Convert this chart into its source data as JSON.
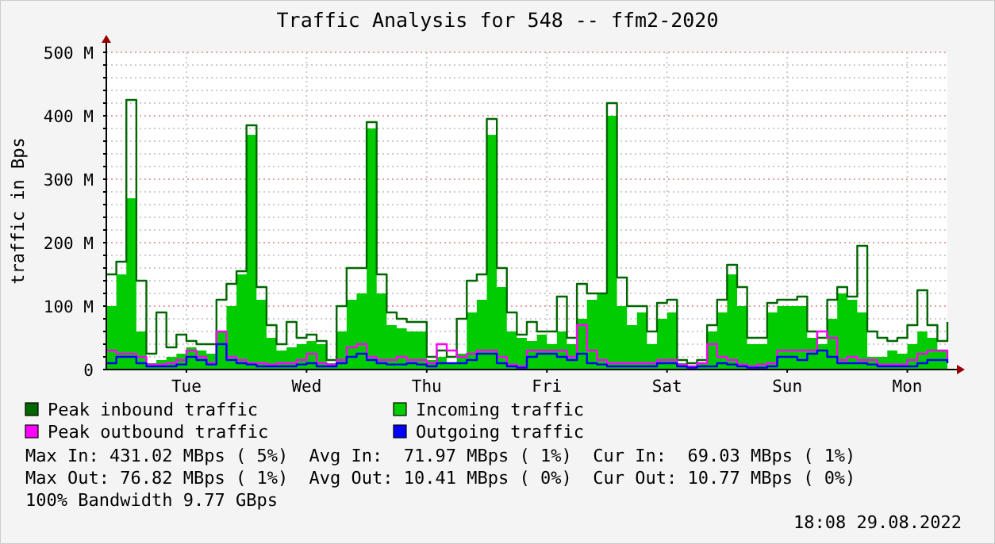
{
  "chart_data": {
    "type": "area",
    "title": "Traffic Analysis for 548 -- ffm2-2020",
    "ylabel": "traffic in Bps",
    "categories": [
      null,
      null,
      null,
      null,
      null,
      null,
      null,
      null,
      "Tue",
      null,
      null,
      null,
      null,
      null,
      null,
      null,
      null,
      null,
      null,
      null,
      "Wed",
      null,
      null,
      null,
      null,
      null,
      null,
      null,
      null,
      null,
      null,
      null,
      "Thu",
      null,
      null,
      null,
      null,
      null,
      null,
      null,
      null,
      null,
      null,
      null,
      "Fri",
      null,
      null,
      null,
      null,
      null,
      null,
      null,
      null,
      null,
      null,
      null,
      "Sat",
      null,
      null,
      null,
      null,
      null,
      null,
      null,
      null,
      null,
      null,
      null,
      "Sun",
      null,
      null,
      null,
      null,
      null,
      null,
      null,
      null,
      null,
      null,
      null,
      "Mon",
      null,
      null,
      null,
      null
    ],
    "series": [
      {
        "name": "Peak inbound traffic",
        "type": "step",
        "color": "#006600",
        "values": [
          150,
          170,
          425,
          140,
          25,
          90,
          35,
          55,
          45,
          40,
          40,
          110,
          135,
          155,
          385,
          130,
          70,
          40,
          75,
          50,
          55,
          45,
          15,
          100,
          160,
          160,
          390,
          150,
          90,
          80,
          75,
          75,
          20,
          30,
          20,
          80,
          140,
          150,
          395,
          160,
          90,
          55,
          75,
          60,
          60,
          115,
          50,
          135,
          120,
          120,
          420,
          145,
          100,
          100,
          60,
          105,
          110,
          15,
          10,
          15,
          70,
          110,
          165,
          130,
          50,
          50,
          105,
          110,
          110,
          115,
          60,
          50,
          110,
          130,
          115,
          195,
          60,
          50,
          45,
          50,
          70,
          125,
          70,
          45,
          75
        ]
      },
      {
        "name": "Incoming traffic",
        "color": "#00cc00",
        "values": [
          100,
          150,
          270,
          60,
          10,
          15,
          20,
          25,
          35,
          30,
          25,
          60,
          100,
          150,
          370,
          110,
          50,
          30,
          35,
          40,
          45,
          40,
          10,
          60,
          110,
          120,
          380,
          120,
          70,
          65,
          60,
          60,
          15,
          20,
          10,
          25,
          90,
          110,
          370,
          130,
          60,
          50,
          45,
          55,
          40,
          60,
          40,
          80,
          110,
          120,
          400,
          100,
          70,
          90,
          40,
          80,
          90,
          10,
          5,
          10,
          60,
          90,
          150,
          100,
          40,
          40,
          90,
          100,
          100,
          100,
          50,
          40,
          80,
          120,
          110,
          90,
          20,
          20,
          30,
          25,
          40,
          60,
          50,
          30,
          70
        ]
      },
      {
        "name": "Peak outbound traffic",
        "type": "step",
        "color": "#ff00ff",
        "values": [
          30,
          25,
          25,
          20,
          8,
          8,
          10,
          15,
          30,
          20,
          10,
          60,
          20,
          15,
          10,
          10,
          8,
          10,
          10,
          15,
          25,
          10,
          8,
          15,
          35,
          40,
          20,
          15,
          15,
          20,
          15,
          15,
          10,
          40,
          30,
          20,
          25,
          30,
          30,
          20,
          8,
          5,
          30,
          30,
          30,
          30,
          20,
          70,
          30,
          15,
          10,
          10,
          10,
          10,
          10,
          15,
          15,
          8,
          5,
          10,
          40,
          20,
          15,
          8,
          5,
          8,
          10,
          30,
          30,
          30,
          30,
          60,
          50,
          15,
          20,
          15,
          15,
          8,
          8,
          8,
          15,
          25,
          30,
          30,
          15
        ]
      },
      {
        "name": "Outgoing traffic",
        "type": "step",
        "color": "#0000ff",
        "values": [
          10,
          20,
          20,
          10,
          5,
          5,
          5,
          8,
          20,
          15,
          8,
          40,
          15,
          10,
          8,
          5,
          5,
          5,
          5,
          8,
          10,
          5,
          5,
          10,
          20,
          25,
          15,
          10,
          8,
          8,
          10,
          8,
          5,
          10,
          10,
          10,
          15,
          25,
          25,
          10,
          5,
          3,
          20,
          25,
          25,
          20,
          15,
          25,
          10,
          8,
          5,
          5,
          5,
          5,
          5,
          10,
          10,
          5,
          3,
          5,
          5,
          10,
          8,
          5,
          3,
          3,
          5,
          20,
          20,
          15,
          25,
          30,
          20,
          10,
          10,
          10,
          8,
          5,
          5,
          5,
          5,
          10,
          15,
          15,
          10
        ]
      }
    ],
    "ylim": [
      0,
      500
    ],
    "yticks": [
      0,
      {
        "value": 20,
        "label": null
      },
      {
        "value": 40,
        "label": null
      },
      {
        "value": 60,
        "label": null
      },
      {
        "value": 80,
        "label": null
      },
      {
        "value": 100,
        "label": "100 M"
      },
      {
        "value": 120,
        "label": null
      },
      {
        "value": 140,
        "label": null
      },
      {
        "value": 160,
        "label": null
      },
      {
        "value": 180,
        "label": null
      },
      {
        "value": 200,
        "label": "200 M"
      },
      {
        "value": 220,
        "label": null
      },
      {
        "value": 240,
        "label": null
      },
      {
        "value": 260,
        "label": null
      },
      {
        "value": 280,
        "label": null
      },
      {
        "value": 300,
        "label": "300 M"
      },
      {
        "value": 320,
        "label": null
      },
      {
        "value": 340,
        "label": null
      },
      {
        "value": 360,
        "label": null
      },
      {
        "value": 380,
        "label": null
      },
      {
        "value": 400,
        "label": "400 M"
      },
      {
        "value": 420,
        "label": null
      },
      {
        "value": 440,
        "label": null
      },
      {
        "value": 460,
        "label": null
      },
      {
        "value": 480,
        "label": null
      },
      {
        "value": 500,
        "label": "500 M"
      }
    ],
    "grid": true,
    "legend": "bottom",
    "annotations": [
      "Max In: 431.02 MBps ( 5%)  Avg In:  71.97 MBps ( 1%)  Cur In:  69.03 MBps ( 1%)",
      "Max Out: 76.82 MBps ( 1%)  Avg Out: 10.41 MBps ( 0%)  Cur Out: 10.77 MBps ( 0%)",
      "100% Bandwidth 9.77 GBps",
      "18:08 29.08.2022"
    ]
  }
}
